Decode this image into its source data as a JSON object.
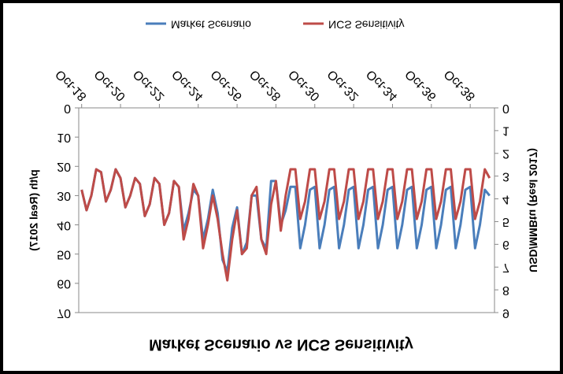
{
  "chart_data": {
    "type": "line",
    "title": "Market Scenario vs NCS Sensitivity",
    "y_label": "p/th (Real 2017)",
    "y2_label": "USD/MMBtu (Real 2017)",
    "x": [
      2018.75,
      2019,
      2019.25,
      2019.5,
      2019.75,
      2020,
      2020.25,
      2020.5,
      2020.75,
      2021,
      2021.25,
      2021.5,
      2021.75,
      2022,
      2022.25,
      2022.5,
      2022.75,
      2023,
      2023.25,
      2023.5,
      2023.75,
      2024,
      2024.25,
      2024.5,
      2024.75,
      2025,
      2025.25,
      2025.5,
      2025.75,
      2026,
      2026.25,
      2026.5,
      2026.75,
      2027,
      2027.25,
      2027.5,
      2027.75,
      2028,
      2028.25,
      2028.5,
      2028.75,
      2029,
      2029.25,
      2029.5,
      2029.75,
      2030,
      2030.25,
      2030.5,
      2030.75,
      2031,
      2031.25,
      2031.5,
      2031.75,
      2032,
      2032.25,
      2032.5,
      2032.75,
      2033,
      2033.25,
      2033.5,
      2033.75,
      2034,
      2034.25,
      2034.5,
      2034.75,
      2035,
      2035.25,
      2035.5,
      2035.75,
      2036,
      2036.25,
      2036.5,
      2036.75,
      2037,
      2037.25,
      2037.5,
      2037.75,
      2038,
      2038.25,
      2038.5,
      2038.75,
      2039,
      2039.25,
      2039.5,
      2039.75
    ],
    "xlim": [
      2018.6,
      2040.0
    ],
    "xticks": [
      {
        "value": 2018.75,
        "label": "Oct-18"
      },
      {
        "value": 2020.75,
        "label": "Oct-20"
      },
      {
        "value": 2022.75,
        "label": "Oct-22"
      },
      {
        "value": 2024.75,
        "label": "Oct-24"
      },
      {
        "value": 2026.75,
        "label": "Oct-26"
      },
      {
        "value": 2028.75,
        "label": "Oct-28"
      },
      {
        "value": 2030.75,
        "label": "Oct-30"
      },
      {
        "value": 2032.75,
        "label": "Oct-32"
      },
      {
        "value": 2034.75,
        "label": "Oct-34"
      },
      {
        "value": 2036.75,
        "label": "Oct-36"
      },
      {
        "value": 2038.75,
        "label": "Oct-38"
      }
    ],
    "ylim": [
      0,
      70
    ],
    "yticks": [
      0,
      10,
      20,
      30,
      40,
      50,
      60,
      70
    ],
    "y2lim": [
      0,
      9
    ],
    "y2ticks": [
      0,
      1,
      2,
      3,
      4,
      5,
      6,
      7,
      8,
      9
    ],
    "legend": "bottom",
    "series": [
      {
        "name": "Market Scenario",
        "color": "#4a7ebb",
        "values": [
          28,
          35,
          30,
          21,
          22,
          32,
          28,
          21,
          24,
          34,
          30,
          24,
          26,
          37,
          33,
          24,
          26,
          40,
          36,
          25,
          27,
          42,
          36,
          28,
          30,
          45,
          38,
          28,
          36,
          52,
          56,
          41,
          34,
          50,
          46,
          30,
          30,
          45,
          48,
          25,
          25,
          40,
          35,
          27,
          27,
          48,
          40,
          28,
          27,
          48,
          40,
          28,
          27,
          48,
          40,
          28,
          27,
          48,
          40,
          28,
          27,
          48,
          40,
          28,
          27,
          48,
          40,
          28,
          27,
          48,
          40,
          28,
          27,
          48,
          40,
          28,
          27,
          48,
          40,
          28,
          27,
          48,
          40,
          28,
          30
        ]
      },
      {
        "name": "NCS Sensitivity",
        "color": "#be4b48",
        "values": [
          28,
          35,
          30,
          21,
          22,
          32,
          28,
          21,
          24,
          34,
          30,
          24,
          26,
          37,
          33,
          24,
          26,
          40,
          36,
          25,
          27,
          45,
          38,
          26,
          30,
          48,
          40,
          30,
          38,
          50,
          59,
          45,
          35,
          50,
          48,
          30,
          27,
          45,
          50,
          33,
          25,
          42,
          30,
          21,
          21,
          38,
          32,
          21,
          21,
          38,
          32,
          21,
          21,
          38,
          32,
          21,
          21,
          38,
          32,
          21,
          21,
          38,
          32,
          21,
          21,
          38,
          32,
          21,
          21,
          38,
          32,
          21,
          21,
          38,
          32,
          21,
          21,
          38,
          32,
          21,
          21,
          38,
          32,
          21,
          24
        ]
      }
    ]
  }
}
